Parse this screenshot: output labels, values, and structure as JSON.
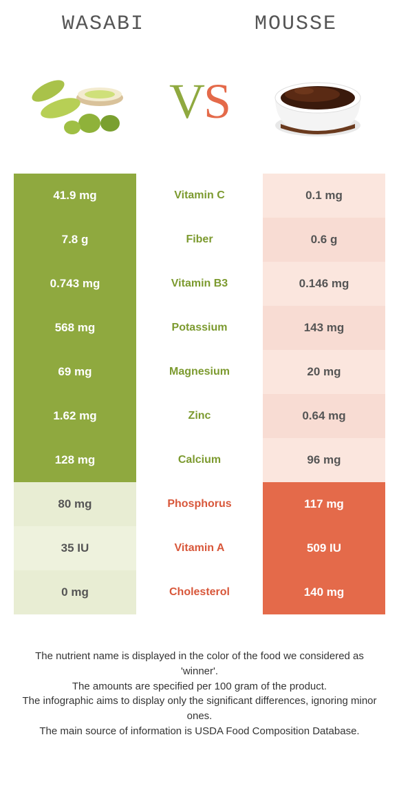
{
  "header": {
    "left": "WASABI",
    "right": "MOUSSE"
  },
  "vs": {
    "v": "V",
    "s": "S"
  },
  "colors": {
    "green": "#8fa93f",
    "orange": "#e46a4a",
    "lightGreen": "#e8edd3",
    "lightOrange": "#f8dcd3",
    "midGreen": "#7c9a2f",
    "midOrange": "#d8573a"
  },
  "rows": [
    {
      "nutrient": "Vitamin C",
      "left": "41.9 mg",
      "right": "0.1 mg",
      "winner": "left"
    },
    {
      "nutrient": "Fiber",
      "left": "7.8 g",
      "right": "0.6 g",
      "winner": "left"
    },
    {
      "nutrient": "Vitamin B3",
      "left": "0.743 mg",
      "right": "0.146 mg",
      "winner": "left"
    },
    {
      "nutrient": "Potassium",
      "left": "568 mg",
      "right": "143 mg",
      "winner": "left"
    },
    {
      "nutrient": "Magnesium",
      "left": "69 mg",
      "right": "20 mg",
      "winner": "left"
    },
    {
      "nutrient": "Zinc",
      "left": "1.62 mg",
      "right": "0.64 mg",
      "winner": "left"
    },
    {
      "nutrient": "Calcium",
      "left": "128 mg",
      "right": "96 mg",
      "winner": "left"
    },
    {
      "nutrient": "Phosphorus",
      "left": "80 mg",
      "right": "117 mg",
      "winner": "right"
    },
    {
      "nutrient": "Vitamin A",
      "left": "35 IU",
      "right": "509 IU",
      "winner": "right"
    },
    {
      "nutrient": "Cholesterol",
      "left": "0 mg",
      "right": "140 mg",
      "winner": "right"
    }
  ],
  "footer": [
    "The nutrient name is displayed in the color of the food we considered as 'winner'.",
    "The amounts are specified per 100 gram of the product.",
    "The infographic aims to display only the significant differences, ignoring minor ones.",
    "The main source of information is USDA Food Composition Database."
  ]
}
